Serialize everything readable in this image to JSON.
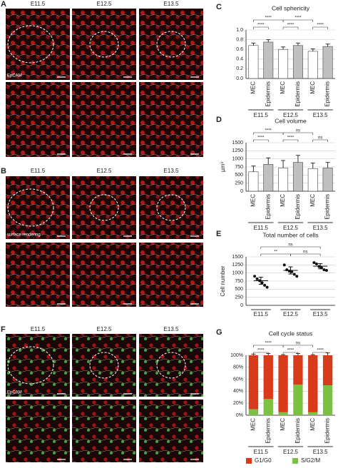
{
  "panels": {
    "A": {
      "label": "A",
      "columns": [
        "E11.5",
        "E12.5",
        "E13.5"
      ],
      "stain": "EpCAM"
    },
    "B": {
      "label": "B",
      "columns": [
        "E11.5",
        "E12.5",
        "E13.5"
      ],
      "note": "surface rendering"
    },
    "F": {
      "label": "F",
      "columns": [
        "E11.5",
        "E12.5",
        "E13.5"
      ],
      "stain": "EpCAM"
    }
  },
  "chart_data": [
    {
      "type": "bar",
      "label": "C",
      "title": "Cell sphericity",
      "categories": [
        "MEC",
        "Epidermis",
        "MEC",
        "Epidermis",
        "MEC",
        "Epidermis"
      ],
      "groups": [
        "E11.5",
        "E12.5",
        "E13.5"
      ],
      "values": [
        0.68,
        0.75,
        0.6,
        0.68,
        0.56,
        0.66
      ],
      "errors": [
        0.05,
        0.05,
        0.05,
        0.05,
        0.05,
        0.05
      ],
      "bar_colors": [
        "#ffffff",
        "#c0c0c0",
        "#ffffff",
        "#c0c0c0",
        "#ffffff",
        "#c0c0c0"
      ],
      "ylim": [
        0,
        1
      ],
      "yticks": [
        {
          "value": 0,
          "label": "0.0"
        },
        0.2,
        0.4,
        0.6,
        0.8,
        {
          "value": 1,
          "label": "1.0"
        }
      ],
      "grid": true,
      "significance": [
        {
          "from": 0,
          "to": 1,
          "label": "****"
        },
        {
          "from": 2,
          "to": 3,
          "label": "****"
        },
        {
          "from": 4,
          "to": 5,
          "label": "****"
        },
        {
          "from": 0,
          "to": 2,
          "label": "****"
        },
        {
          "from": 2,
          "to": 4,
          "label": "****"
        }
      ]
    },
    {
      "type": "bar",
      "label": "D",
      "title": "Cell volume",
      "ylabel": "µm³",
      "categories": [
        "MEC",
        "Epidermis",
        "MEC",
        "Epidermis",
        "MEC",
        "Epidermis"
      ],
      "groups": [
        "E11.5",
        "E12.5",
        "E13.5"
      ],
      "values": [
        600,
        830,
        720,
        890,
        700,
        720
      ],
      "errors": [
        180,
        200,
        230,
        220,
        170,
        170
      ],
      "bar_colors": [
        "#ffffff",
        "#c0c0c0",
        "#ffffff",
        "#c0c0c0",
        "#ffffff",
        "#c0c0c0"
      ],
      "ylim": [
        0,
        1500
      ],
      "yticks": [
        0,
        250,
        500,
        750,
        1000,
        1250,
        1500
      ],
      "grid": true,
      "significance": [
        {
          "from": 0,
          "to": 1,
          "label": "****"
        },
        {
          "from": 2,
          "to": 3,
          "label": "****"
        },
        {
          "from": 4,
          "to": 5,
          "label": "ns"
        },
        {
          "from": 0,
          "to": 2,
          "label": "****"
        },
        {
          "from": 2,
          "to": 4,
          "label": "ns"
        }
      ]
    },
    {
      "type": "scatter",
      "label": "E",
      "title": "Total number of cells",
      "ylabel": "Cell number",
      "categories": [
        "E11.5",
        "E12.5",
        "E13.5"
      ],
      "values": [
        [
          900,
          820,
          760,
          700,
          620,
          560
        ],
        [
          1250,
          1100,
          1060,
          1040,
          960,
          900
        ],
        [
          1320,
          1280,
          1200,
          1160,
          1100,
          1080
        ]
      ],
      "means": [
        760,
        1080,
        1210
      ],
      "errors": [
        110,
        110,
        80
      ],
      "color": "#111111",
      "ylim": [
        0,
        1500
      ],
      "yticks": [
        0,
        250,
        500,
        750,
        1000,
        1250,
        1500
      ],
      "grid": true,
      "significance": [
        {
          "from": 0,
          "to": 1,
          "label": "**"
        },
        {
          "from": 1,
          "to": 2,
          "label": "ns"
        },
        {
          "from": 0,
          "to": 2,
          "label": "ns"
        }
      ]
    },
    {
      "type": "stacked",
      "label": "G",
      "title": "Cell cycle status",
      "categories": [
        "MEC",
        "Epidermis",
        "MEC",
        "Epidermis",
        "MEC",
        "Epidermis"
      ],
      "groups": [
        "E11.5",
        "E12.5",
        "E13.5"
      ],
      "series": [
        {
          "name": "G1/G0",
          "color": "#d93a1a",
          "values": [
            90,
            73,
            95,
            49,
            95,
            50
          ],
          "errors": [
            2,
            3,
            1,
            3,
            1,
            4
          ]
        },
        {
          "name": "S/G2/M",
          "color": "#7cc242",
          "values": [
            10,
            27,
            5,
            51,
            5,
            50
          ],
          "errors": [
            2,
            4,
            1,
            3,
            1,
            5
          ]
        }
      ],
      "ylim": [
        0,
        100
      ],
      "yticks": [
        {
          "value": 0,
          "label": "0%"
        },
        {
          "value": 20,
          "label": "20%"
        },
        {
          "value": 40,
          "label": "40%"
        },
        {
          "value": 60,
          "label": "60%"
        },
        {
          "value": 80,
          "label": "80%"
        },
        {
          "value": 100,
          "label": "100%"
        }
      ],
      "grid": true,
      "significance": [
        {
          "from": 0,
          "to": 1,
          "label": "****"
        },
        {
          "from": 2,
          "to": 3,
          "label": "****"
        },
        {
          "from": 4,
          "to": 5,
          "label": "****"
        },
        {
          "from": 0,
          "to": 2,
          "label": "****"
        },
        {
          "from": 2,
          "to": 4,
          "label": "ns"
        }
      ]
    }
  ]
}
